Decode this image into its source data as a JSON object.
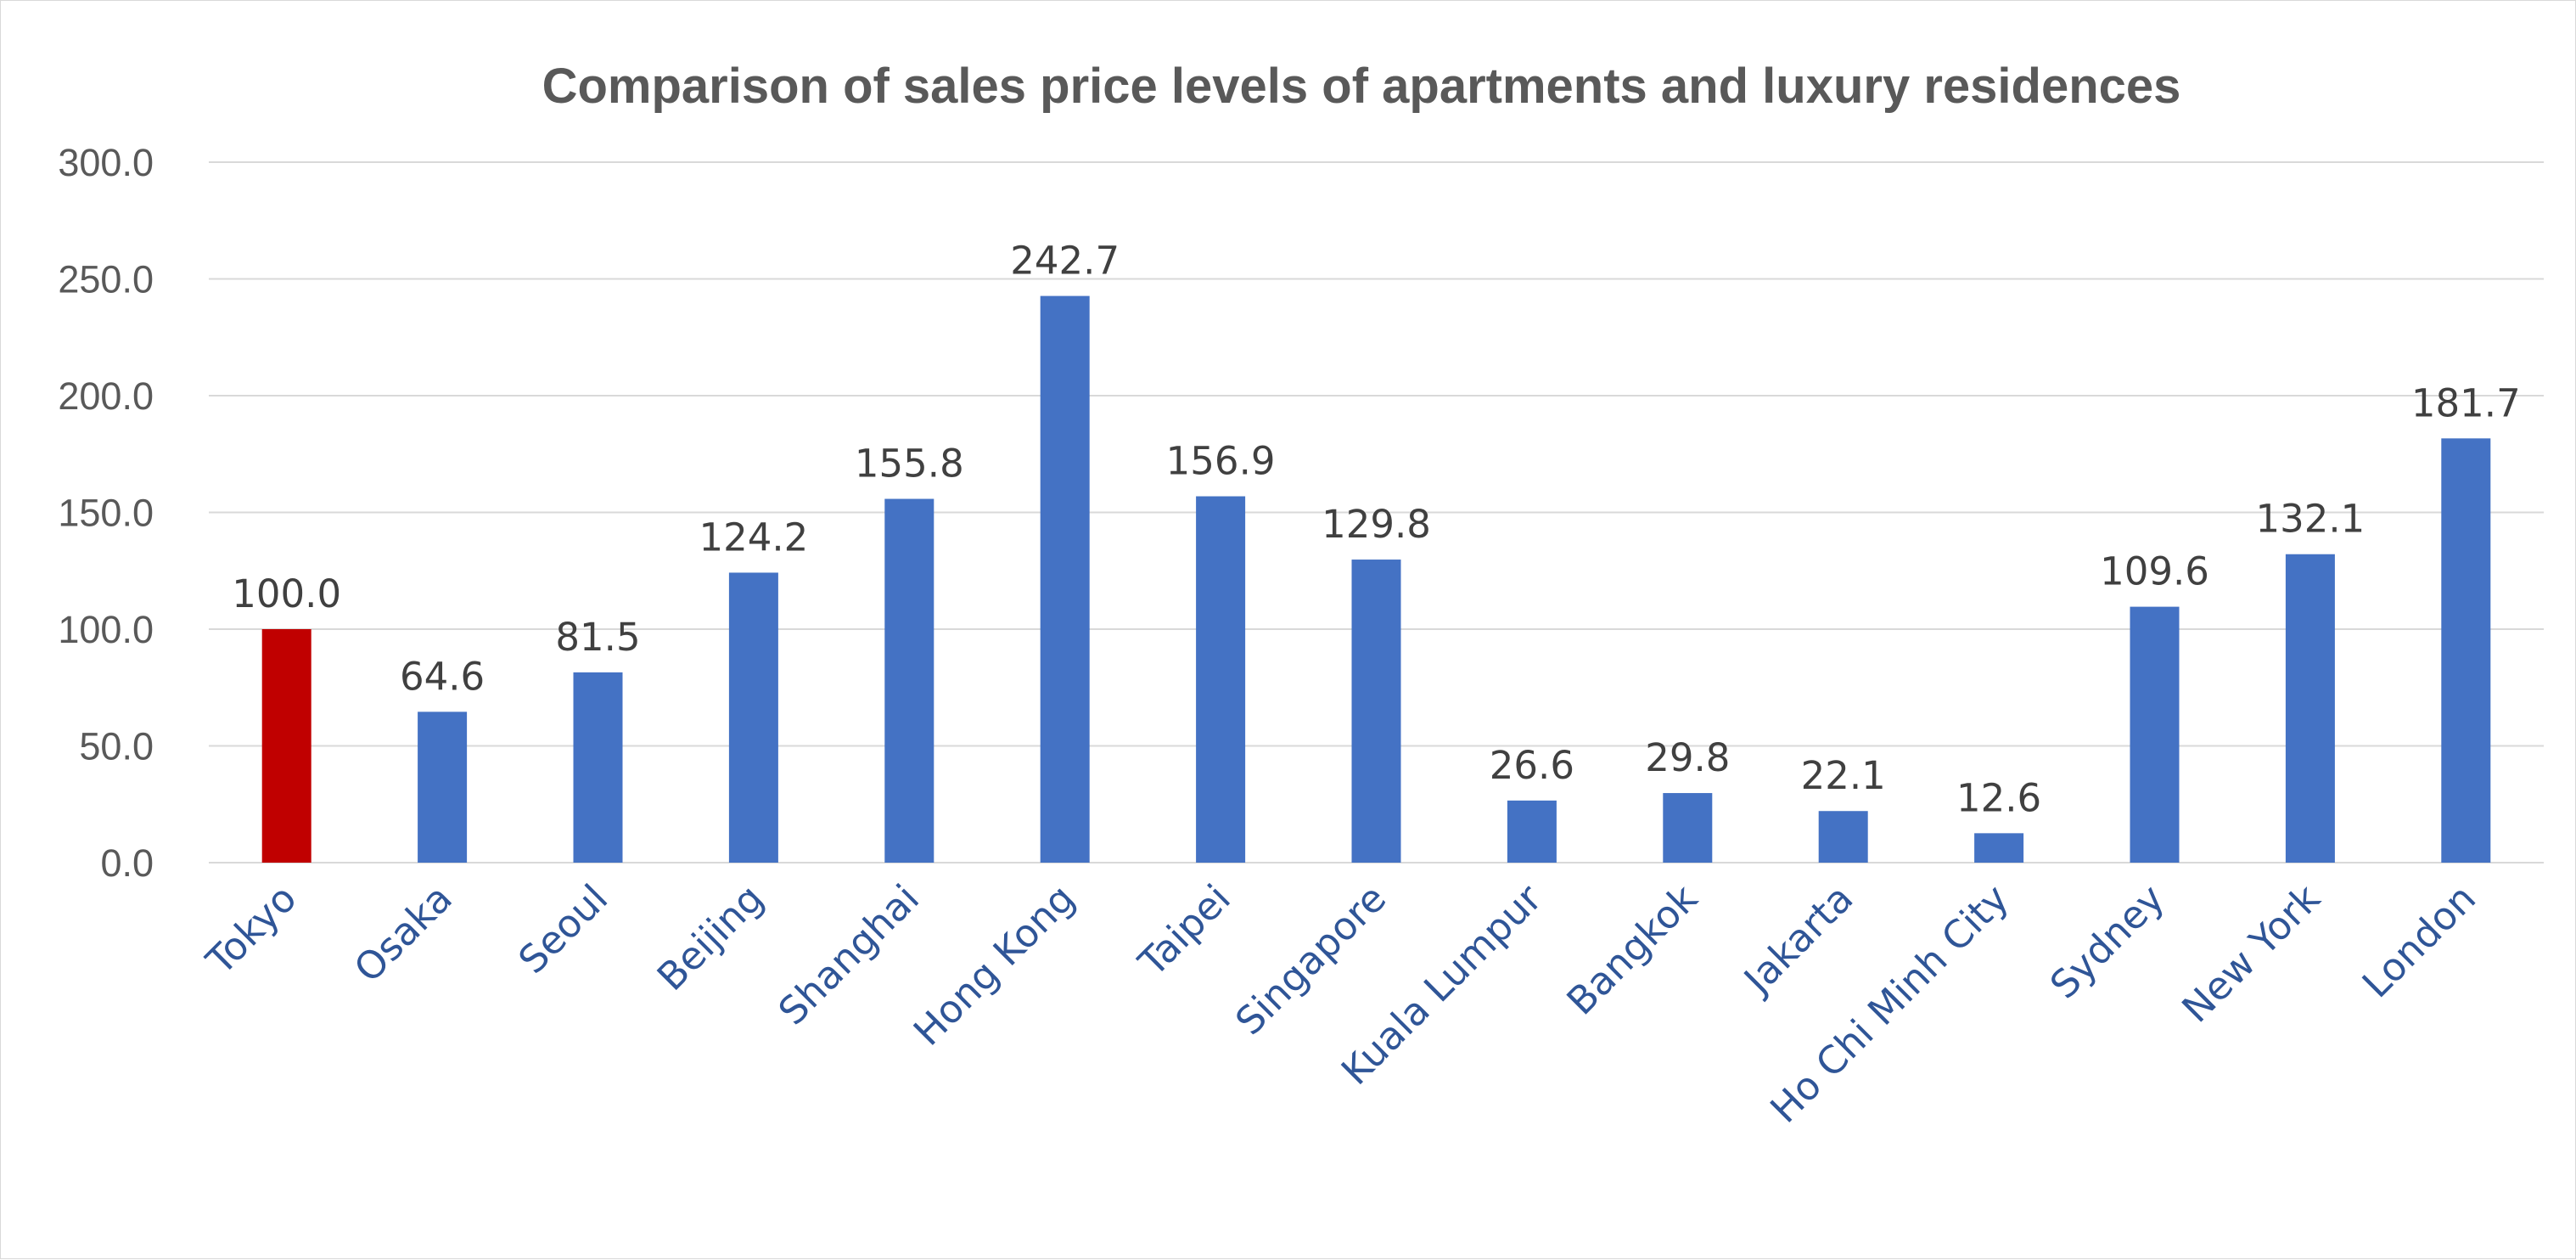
{
  "chart_data": {
    "type": "bar",
    "title": "Comparison of sales price levels of apartments and luxury residences",
    "xlabel": "",
    "ylabel": "",
    "ylim": [
      0,
      300
    ],
    "y_ticks": [
      "0.0",
      "50.0",
      "100.0",
      "150.0",
      "200.0",
      "250.0",
      "300.0"
    ],
    "grid": true,
    "legend": "none",
    "categories": [
      "Tokyo",
      "Osaka",
      "Seoul",
      "Beijing",
      "Shanghai",
      "Hong Kong",
      "Taipei",
      "Singapore",
      "Kuala Lumpur",
      "Bangkok",
      "Jakarta",
      "Ho Chi Minh City",
      "Sydney",
      "New York",
      "London"
    ],
    "values": [
      100.0,
      64.6,
      81.5,
      124.2,
      155.8,
      242.7,
      156.9,
      129.8,
      26.6,
      29.8,
      22.1,
      12.6,
      109.6,
      132.1,
      181.7
    ],
    "data_labels": [
      "100.0",
      "64.6",
      "81.5",
      "124.2",
      "155.8",
      "242.7",
      "156.9",
      "129.8",
      "26.6",
      "29.8",
      "22.1",
      "12.6",
      "109.6",
      "132.1",
      "181.7"
    ],
    "colors": {
      "default_bar": "#4472c4",
      "highlight_bar": "#c00000",
      "category_text": "#2f5597",
      "gridline": "#d9d9d9"
    },
    "highlight_category": "Tokyo"
  }
}
